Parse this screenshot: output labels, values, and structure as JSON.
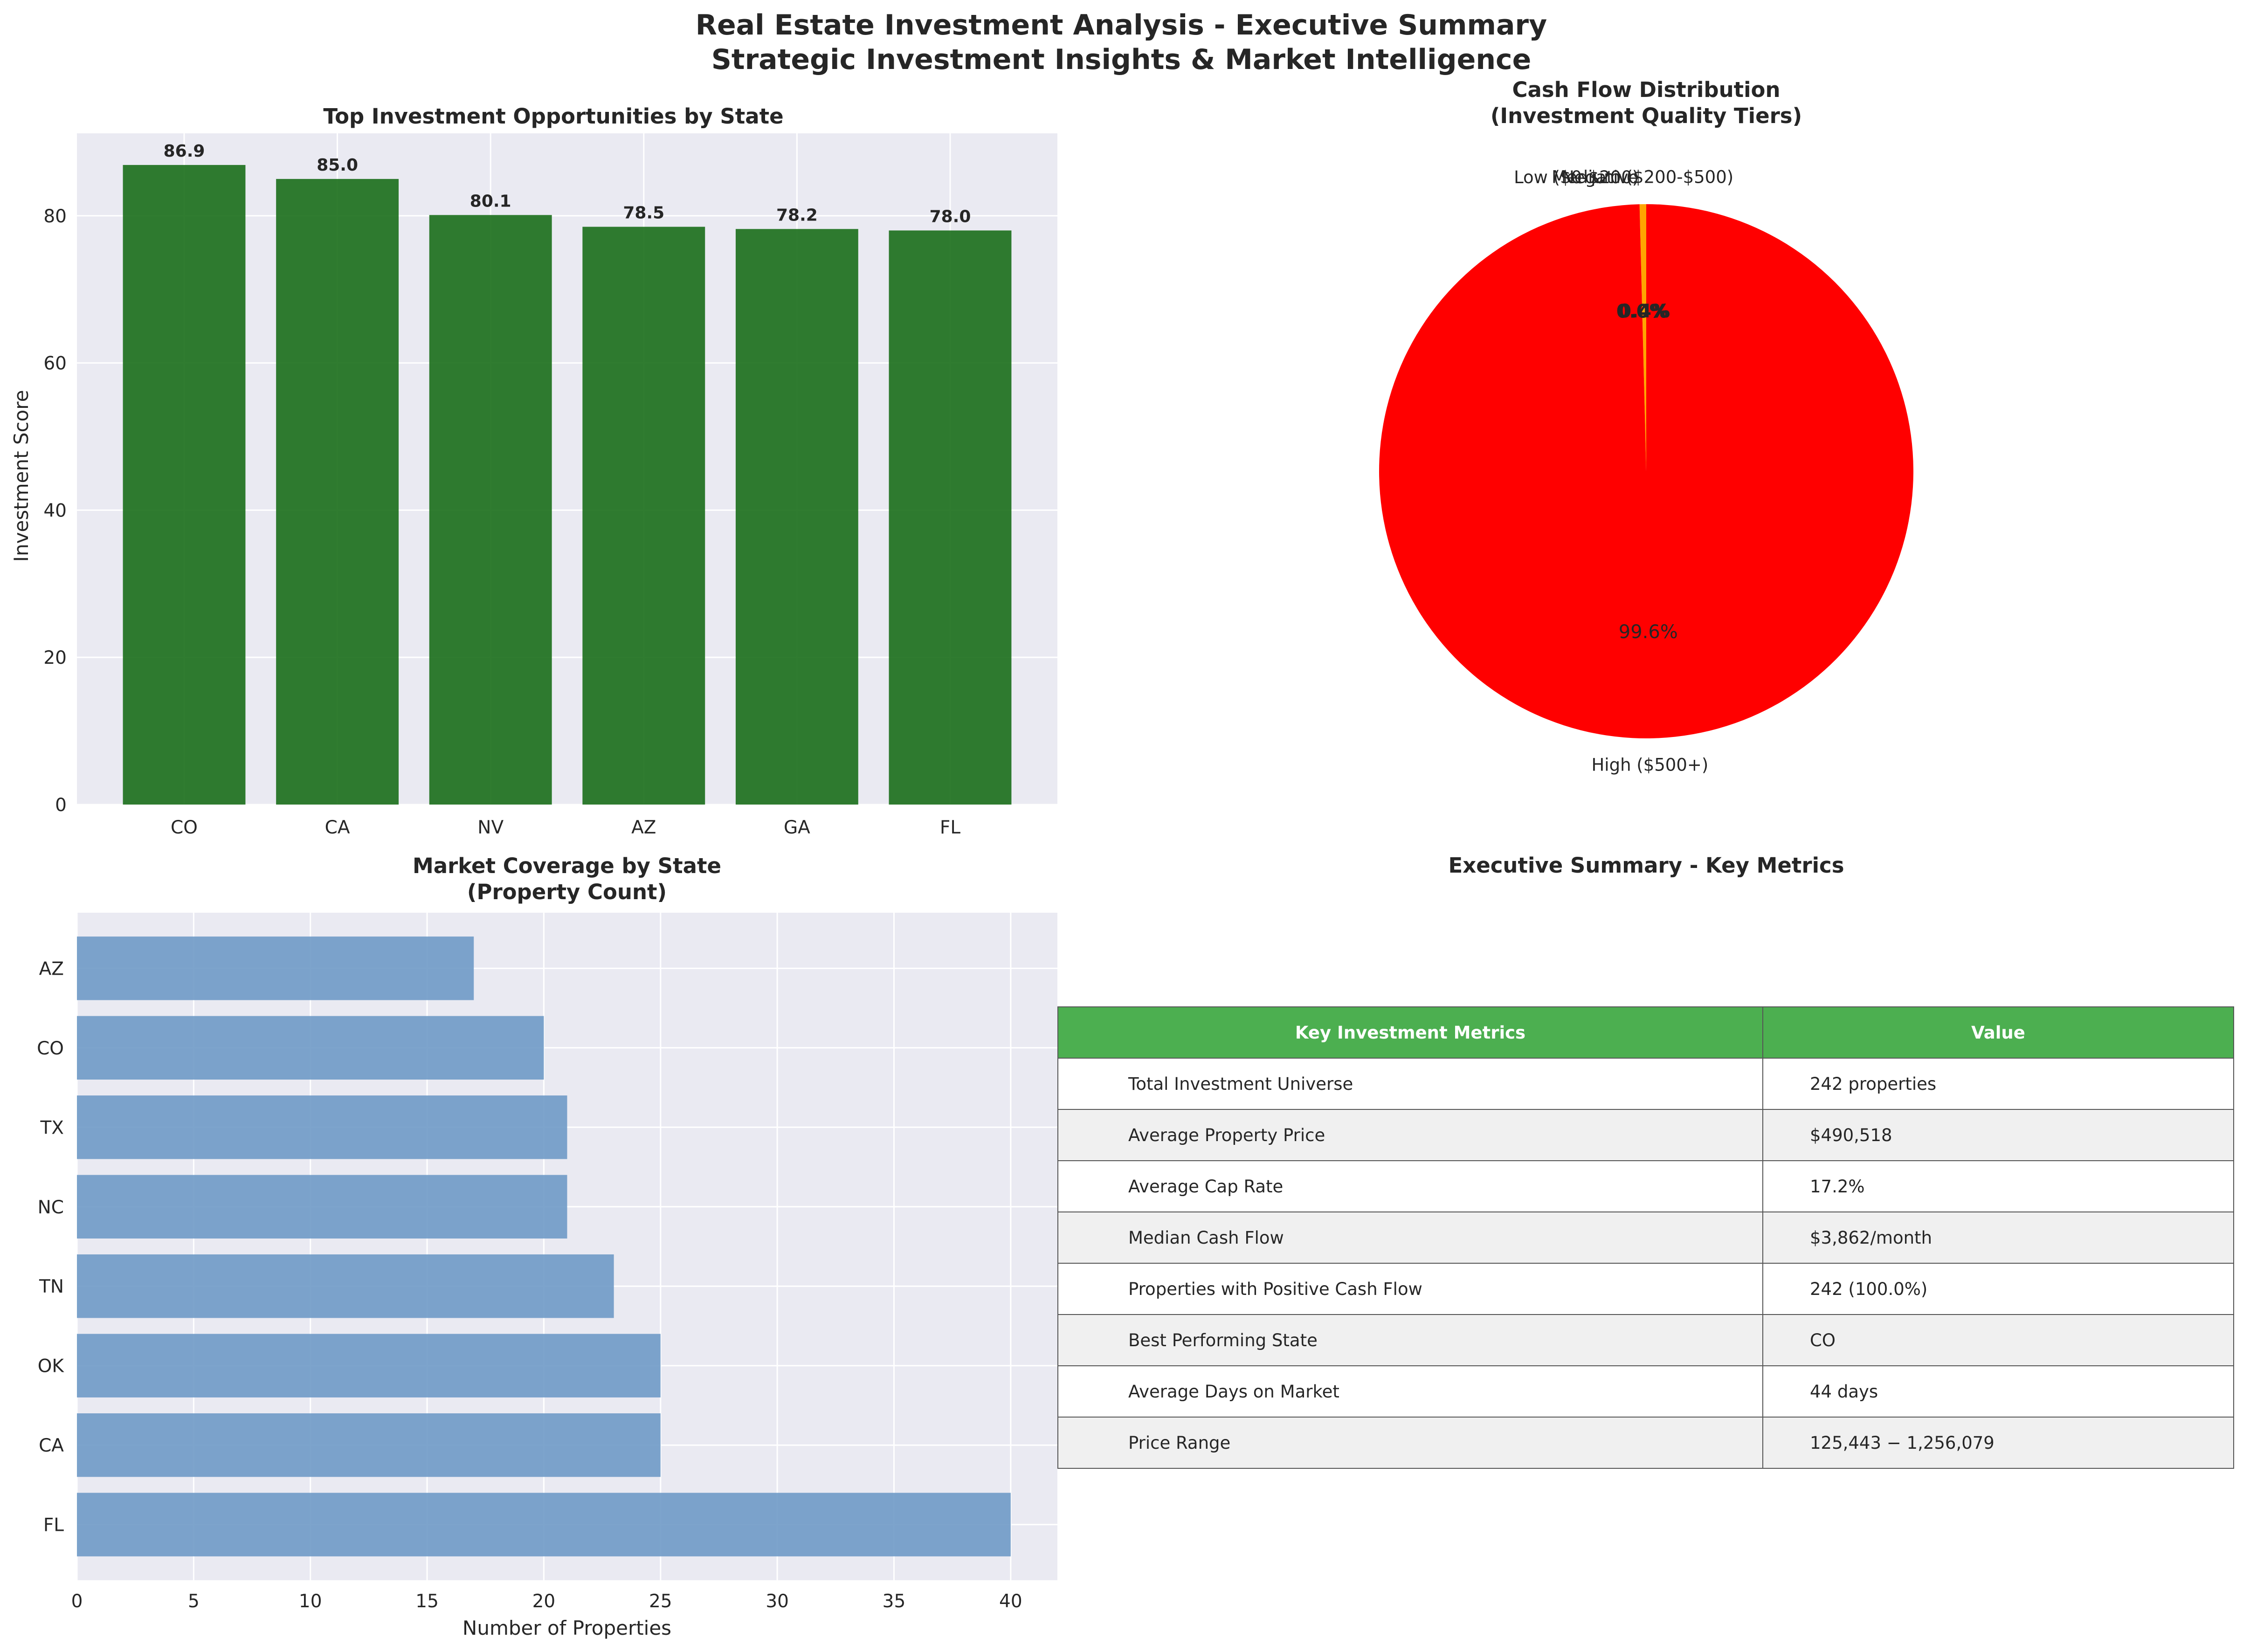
{
  "figure": {
    "title_line1": "Real Estate Investment Analysis - Executive Summary",
    "title_line2": "Strategic Investment Insights & Market Intelligence"
  },
  "colors": {
    "panel_bg": "#eaeaf2",
    "grid": "#ffffff",
    "bar_green": "#1a6e1a",
    "bar_blue": "#6f9ac6",
    "pie_high": "#ff0000",
    "pie_medium": "#ffa500",
    "table_header": "#4caf50",
    "table_shade": "#f0f0f0"
  },
  "chart_data": [
    {
      "id": "top_states",
      "type": "bar",
      "title": "Top Investment Opportunities by State",
      "xlabel": "",
      "ylabel": "Investment Score",
      "categories": [
        "CO",
        "CA",
        "NV",
        "AZ",
        "GA",
        "FL"
      ],
      "values": [
        86.9,
        85.0,
        80.1,
        78.5,
        78.2,
        78.0
      ],
      "data_labels": [
        "86.9",
        "85.0",
        "80.1",
        "78.5",
        "78.2",
        "78.0"
      ],
      "ylim": [
        0,
        91.2
      ],
      "yticks": [
        0,
        20,
        40,
        60,
        80
      ],
      "grid": true
    },
    {
      "id": "cash_flow",
      "type": "pie",
      "title_line1": "Cash Flow Distribution",
      "title_line2": "(Investment Quality Tiers)",
      "slices": [
        {
          "label": "Medium ($200-$500)",
          "display_label": "Medium ($200-$500)",
          "value": 0.4,
          "pct_label": "0.4%"
        },
        {
          "label": "Low ($0-$200)",
          "display_label": "Low ($0-$200)",
          "value": 0.0,
          "pct_label": "0.0%"
        },
        {
          "label": "Negative",
          "display_label": "Negative",
          "value": 0.0,
          "pct_label": "0.0%"
        },
        {
          "label": "High ($500+)",
          "display_label": "High ($500+)",
          "value": 99.6,
          "pct_label": "99.6%"
        }
      ]
    },
    {
      "id": "coverage",
      "type": "bar",
      "orientation": "horizontal",
      "title_line1": "Market Coverage by State",
      "title_line2": "(Property Count)",
      "xlabel": "Number of Properties",
      "ylabel": "",
      "categories": [
        "FL",
        "CA",
        "OK",
        "TN",
        "NC",
        "TX",
        "CO",
        "AZ"
      ],
      "values": [
        40,
        25,
        25,
        23,
        21,
        21,
        20,
        17
      ],
      "xlim": [
        0,
        42
      ],
      "xticks": [
        0,
        5,
        10,
        15,
        20,
        25,
        30,
        35,
        40
      ],
      "grid": true
    },
    {
      "id": "summary_table",
      "type": "table",
      "title": "Executive Summary - Key Metrics",
      "columns": [
        "Key Investment Metrics",
        "Value"
      ],
      "rows": [
        [
          "Total Investment Universe",
          "242 properties"
        ],
        [
          "Average Property Price",
          "$490,518"
        ],
        [
          "Average Cap Rate",
          "17.2%"
        ],
        [
          "Median Cash Flow",
          "$3,862/month"
        ],
        [
          "Properties with Positive Cash Flow",
          "242 (100.0%)"
        ],
        [
          "Best Performing State",
          "CO"
        ],
        [
          "Average Days on Market",
          "44 days"
        ],
        [
          "Price Range",
          "125,443 − 1,256,079"
        ]
      ]
    }
  ]
}
